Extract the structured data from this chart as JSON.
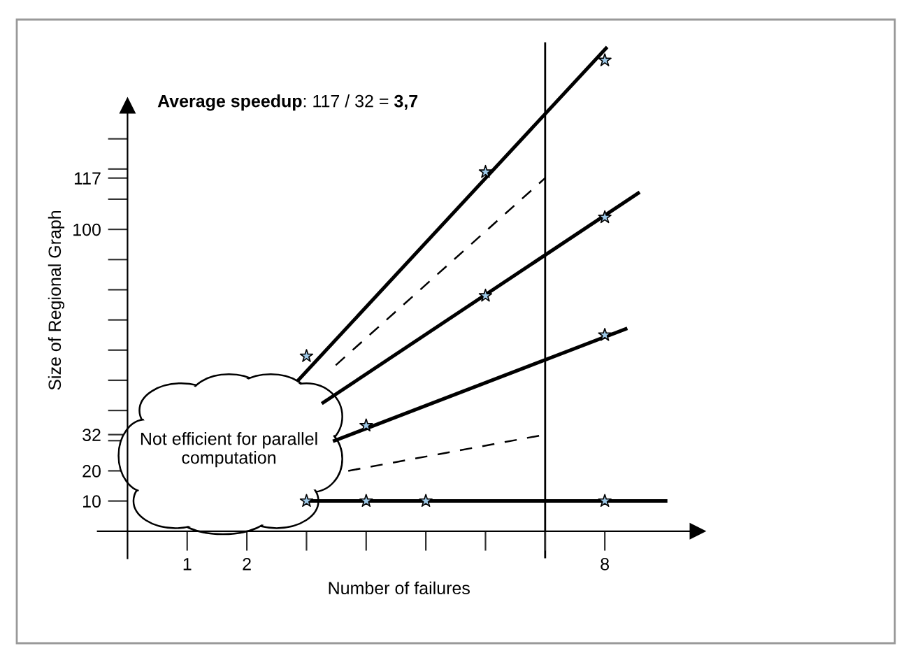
{
  "chart_data": {
    "type": "line",
    "xlabel": "Number of failures",
    "ylabel": "Size of Regional Graph",
    "annotations": [
      "Average speedup: 117 / 32 = 3,7",
      "Not efficient for parallel computation"
    ],
    "xlim": [
      -0.5,
      9.6
    ],
    "ylim": [
      -9,
      162
    ],
    "xticks": [
      {
        "value": 1,
        "label": "1"
      },
      {
        "value": 2,
        "label": "2"
      },
      {
        "value": 3,
        "label": null
      },
      {
        "value": 4,
        "label": null
      },
      {
        "value": 5,
        "label": null
      },
      {
        "value": 6,
        "label": null
      },
      {
        "value": 7,
        "label": null
      },
      {
        "value": 8,
        "label": "8"
      }
    ],
    "yticks": [
      10,
      20,
      {
        "value": 30,
        "label": null
      },
      32,
      {
        "value": 40,
        "label": null
      },
      {
        "value": 50,
        "label": null
      },
      {
        "value": 60,
        "label": null
      },
      {
        "value": 70,
        "label": null
      },
      {
        "value": 80,
        "label": null
      },
      {
        "value": 90,
        "label": null
      },
      100,
      {
        "value": 110,
        "label": null
      },
      117,
      {
        "value": 120,
        "label": null
      },
      {
        "value": 130,
        "label": null
      }
    ],
    "grid": false,
    "legend": false,
    "ref_lines": [
      {
        "axis": "x",
        "value": 7,
        "color": "#000000"
      }
    ],
    "series": [
      {
        "type": "line",
        "color": "#000000",
        "line_style": "solid",
        "marker": "none",
        "x": [
          2.86,
          8.02
        ],
        "values": [
          50,
          160
        ]
      },
      {
        "type": "line",
        "color": "#000000",
        "line_style": "solid",
        "marker": "none",
        "x": [
          3.28,
          8.56
        ],
        "values": [
          42.6,
          112
        ]
      },
      {
        "type": "line",
        "color": "#000000",
        "line_style": "solid",
        "marker": "none",
        "x": [
          3.47,
          8.35
        ],
        "values": [
          30,
          67
        ]
      },
      {
        "type": "line",
        "color": "#000000",
        "line_style": "solid",
        "marker": "none",
        "x": [
          3,
          9.02
        ],
        "values": [
          10,
          10
        ]
      },
      {
        "type": "line",
        "color": "#000000",
        "line_style": "dashed",
        "marker": "none",
        "x": [
          3.49,
          7
        ],
        "values": [
          55,
          117
        ]
      },
      {
        "type": "line",
        "color": "#000000",
        "line_style": "dashed",
        "marker": "none",
        "x": [
          3.7,
          7
        ],
        "values": [
          20,
          32
        ]
      },
      {
        "type": "scatter",
        "color": "#9ec9e8",
        "marker": "star",
        "x": [
          3,
          6,
          8
        ],
        "values": [
          58,
          119,
          156
        ]
      },
      {
        "type": "scatter",
        "color": "#9ec9e8",
        "marker": "star",
        "x": [
          6,
          8
        ],
        "values": [
          78,
          104
        ]
      },
      {
        "type": "scatter",
        "color": "#9ec9e8",
        "marker": "star",
        "x": [
          4,
          8
        ],
        "values": [
          35,
          65
        ]
      },
      {
        "type": "scatter",
        "color": "#9ec9e8",
        "marker": "star",
        "x": [
          3,
          4,
          5,
          8
        ],
        "values": [
          10,
          10,
          10,
          10
        ]
      }
    ]
  }
}
